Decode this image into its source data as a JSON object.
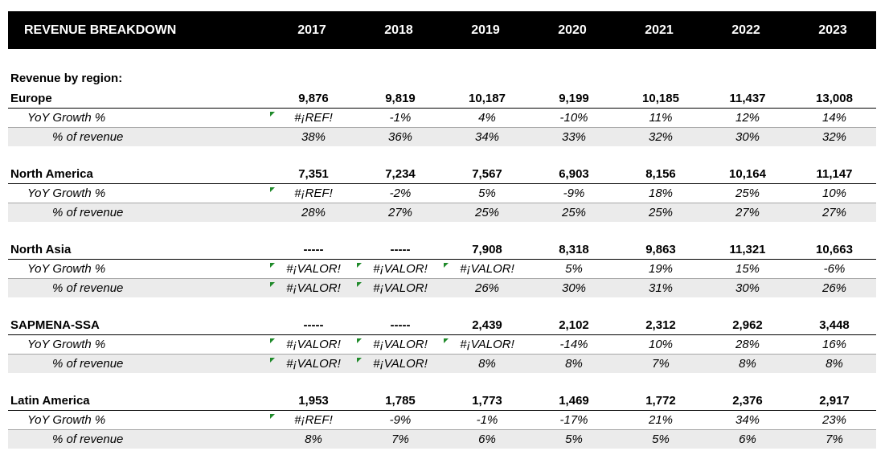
{
  "header": {
    "title": "REVENUE BREAKDOWN",
    "years": [
      "2017",
      "2018",
      "2019",
      "2020",
      "2021",
      "2022",
      "2023"
    ]
  },
  "section_title": "Revenue by region:",
  "row_labels": {
    "yoy": "YoY Growth %",
    "pct": "% of revenue"
  },
  "regions": [
    {
      "name": "Europe",
      "revenue": [
        "9,876",
        "9,819",
        "10,187",
        "9,199",
        "10,185",
        "11,437",
        "13,008"
      ],
      "yoy": [
        "#¡REF!",
        "-1%",
        "4%",
        "-10%",
        "11%",
        "12%",
        "14%"
      ],
      "pct": [
        "38%",
        "36%",
        "34%",
        "33%",
        "32%",
        "30%",
        "32%"
      ]
    },
    {
      "name": "North America",
      "revenue": [
        "7,351",
        "7,234",
        "7,567",
        "6,903",
        "8,156",
        "10,164",
        "11,147"
      ],
      "yoy": [
        "#¡REF!",
        "-2%",
        "5%",
        "-9%",
        "18%",
        "25%",
        "10%"
      ],
      "pct": [
        "28%",
        "27%",
        "25%",
        "25%",
        "25%",
        "27%",
        "27%"
      ]
    },
    {
      "name": "North Asia",
      "revenue": [
        "-----",
        "-----",
        "7,908",
        "8,318",
        "9,863",
        "11,321",
        "10,663"
      ],
      "yoy": [
        "#¡VALOR!",
        "#¡VALOR!",
        "#¡VALOR!",
        "5%",
        "19%",
        "15%",
        "-6%"
      ],
      "pct": [
        "#¡VALOR!",
        "#¡VALOR!",
        "26%",
        "30%",
        "31%",
        "30%",
        "26%"
      ]
    },
    {
      "name": "SAPMENA-SSA",
      "revenue": [
        "-----",
        "-----",
        "2,439",
        "2,102",
        "2,312",
        "2,962",
        "3,448"
      ],
      "yoy": [
        "#¡VALOR!",
        "#¡VALOR!",
        "#¡VALOR!",
        "-14%",
        "10%",
        "28%",
        "16%"
      ],
      "pct": [
        "#¡VALOR!",
        "#¡VALOR!",
        "8%",
        "8%",
        "7%",
        "8%",
        "8%"
      ]
    },
    {
      "name": "Latin America",
      "revenue": [
        "1,953",
        "1,785",
        "1,773",
        "1,469",
        "1,772",
        "2,376",
        "2,917"
      ],
      "yoy": [
        "#¡REF!",
        "-9%",
        "-1%",
        "-17%",
        "21%",
        "34%",
        "23%"
      ],
      "pct": [
        "8%",
        "7%",
        "6%",
        "5%",
        "5%",
        "6%",
        "7%"
      ]
    }
  ],
  "colors": {
    "header_bg": "#000000",
    "header_text": "#ffffff",
    "shade": "#ebebeb",
    "error_flag": "#1f8a2a"
  }
}
